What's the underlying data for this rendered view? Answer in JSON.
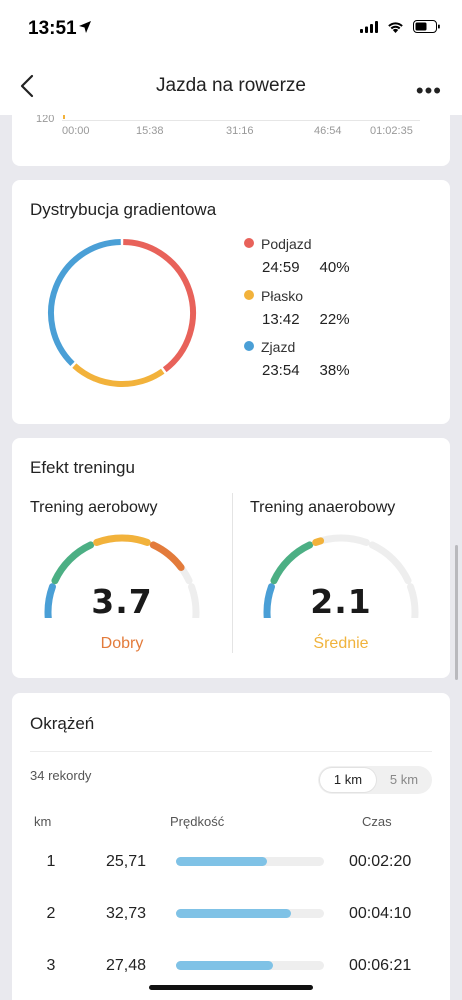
{
  "status_bar": {
    "time": "13:51"
  },
  "nav": {
    "title": "Jazda na rowerze",
    "more": "•••"
  },
  "elevation_chart": {
    "y_label": "120",
    "x_labels": [
      "00:00",
      "15:38",
      "31:16",
      "46:54",
      "01:02:35"
    ]
  },
  "gradient": {
    "title": "Dystrybucja gradientowa",
    "items": [
      {
        "name": "Podjazd",
        "time": "24:59",
        "percent": "40%",
        "color": "#e8625a"
      },
      {
        "name": "Płasko",
        "time": "13:42",
        "percent": "22%",
        "color": "#f2b23b"
      },
      {
        "name": "Zjazd",
        "time": "23:54",
        "percent": "38%",
        "color": "#4a9fd6"
      }
    ]
  },
  "training_effect": {
    "title": "Efekt treningu",
    "aerobic": {
      "label": "Trening aerobowy",
      "value": "3.7",
      "level": 3.7,
      "status": "Dobry",
      "status_color": "#e37b3b"
    },
    "anaerobic": {
      "label": "Trening anaerobowy",
      "value": "2.1",
      "level": 2.1,
      "status": "Średnie",
      "status_color": "#f0b33c"
    },
    "segment_colors": [
      "#4a9fd6",
      "#4caf84",
      "#f2b23b",
      "#e37b3b",
      "#eeeeee"
    ]
  },
  "laps": {
    "title": "Okrążeń",
    "records": "34 rekordy",
    "toggle": {
      "km": "1 km",
      "five_km": "5 km"
    },
    "headers": {
      "km": "km",
      "speed": "Prędkość",
      "time": "Czas"
    },
    "rows": [
      {
        "km": "1",
        "speed": "25,71",
        "time": "00:02:20",
        "speed_value": 25.71
      },
      {
        "km": "2",
        "speed": "32,73",
        "time": "00:04:10",
        "speed_value": 32.73
      },
      {
        "km": "3",
        "speed": "27,48",
        "time": "00:06:21",
        "speed_value": 27.48
      }
    ],
    "bar_max_speed": 42
  }
}
